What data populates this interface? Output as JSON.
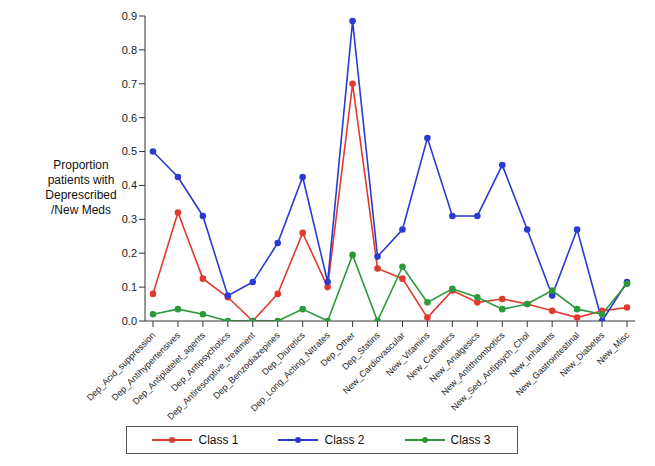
{
  "chart_data": {
    "type": "line",
    "y_label": "Proportion\npatients with\nDeprescribed\n/New Meds",
    "categories": [
      "Dep_Acid_suppression",
      "Dep_Antihypertensives",
      "Dep_Antiplatelet_agents",
      "Dep_Antipsychotics",
      "Dep_Antiresorptive_treatment",
      "Dep_Benzodiazepines",
      "Dep_Diuretics",
      "Dep_Long_Acting_Nitrates",
      "Dep_Other",
      "Dep_Statins",
      "New_Cardiovascular",
      "New_Vitamins",
      "New_Cathartics",
      "New_Analgesics",
      "New_Antithrombotics",
      "New_Sed_Antipsych_Chol",
      "New_Inhalants",
      "New_Gastrointestinal",
      "New_Diabetes",
      "New_Misc"
    ],
    "series": [
      {
        "name": "Class 1",
        "color": "#e03a2f",
        "values": [
          0.08,
          0.32,
          0.125,
          0.07,
          0.0,
          0.08,
          0.26,
          0.1,
          0.7,
          0.155,
          0.125,
          0.01,
          0.09,
          0.055,
          0.065,
          0.05,
          0.03,
          0.01,
          0.03,
          0.04
        ]
      },
      {
        "name": "Class 2",
        "color": "#2b3bd1",
        "values": [
          0.5,
          0.425,
          0.31,
          0.075,
          0.115,
          0.23,
          0.425,
          0.115,
          0.885,
          0.19,
          0.27,
          0.54,
          0.31,
          0.31,
          0.46,
          0.27,
          0.075,
          0.27,
          0.0,
          0.115
        ]
      },
      {
        "name": "Class 3",
        "color": "#2a9a3a",
        "values": [
          0.02,
          0.035,
          0.02,
          0.0,
          0.0,
          0.0,
          0.035,
          0.0,
          0.195,
          0.0,
          0.16,
          0.055,
          0.095,
          0.07,
          0.035,
          0.05,
          0.09,
          0.035,
          0.02,
          0.11
        ]
      }
    ],
    "ylim": [
      0,
      0.9
    ],
    "yticks": [
      {
        "value": 0,
        "label": "0.0"
      },
      {
        "value": 0.1,
        "label": "0.1"
      },
      {
        "value": 0.2,
        "label": "0.2"
      },
      {
        "value": 0.3,
        "label": "0.3"
      },
      {
        "value": 0.4,
        "label": "0.4"
      },
      {
        "value": 0.5,
        "label": "0.5"
      },
      {
        "value": 0.6,
        "label": "0.6"
      },
      {
        "value": 0.7,
        "label": "0.7"
      },
      {
        "value": 0.8,
        "label": "0.8"
      },
      {
        "value": 0.9,
        "label": "0.9"
      }
    ],
    "grid": false,
    "legend": "bottom",
    "marker": "circle"
  }
}
